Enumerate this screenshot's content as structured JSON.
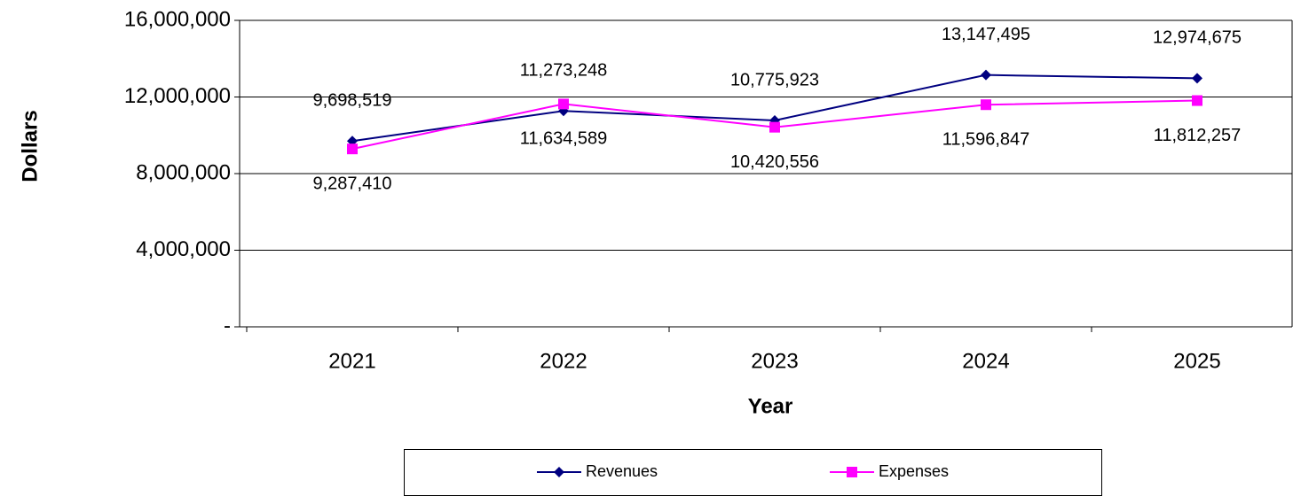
{
  "chart_data": {
    "type": "line",
    "xlabel": "Year",
    "ylabel": "Dollars",
    "categories": [
      "2021",
      "2022",
      "2023",
      "2024",
      "2025"
    ],
    "series": [
      {
        "name": "Revenues",
        "color": "#000080",
        "marker": "diamond",
        "values": [
          9698519,
          11273248,
          10775923,
          13147495,
          12974675
        ],
        "value_labels": [
          "9,698,519",
          "11,273,248",
          "10,775,923",
          "13,147,495",
          "12,974,675"
        ]
      },
      {
        "name": "Expenses",
        "color": "#ff00ff",
        "marker": "square",
        "values": [
          9287410,
          11634589,
          10420556,
          11596847,
          11812257
        ],
        "value_labels": [
          "9,287,410",
          "11,634,589",
          "10,420,556",
          "11,596,847",
          "11,812,257"
        ]
      }
    ],
    "ylim": [
      0,
      16000000
    ],
    "yticks": [
      {
        "value": 0,
        "label": "-"
      },
      {
        "value": 4000000,
        "label": "4,000,000"
      },
      {
        "value": 8000000,
        "label": "8,000,000"
      },
      {
        "value": 12000000,
        "label": "12,000,000"
      },
      {
        "value": 16000000,
        "label": "16,000,000"
      }
    ],
    "grid": true,
    "legend": "bottom"
  }
}
